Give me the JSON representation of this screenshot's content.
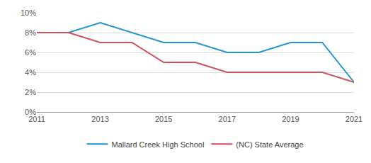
{
  "chart_data": {
    "type": "line",
    "x": [
      2011,
      2012,
      2013,
      2014,
      2015,
      2016,
      2017,
      2018,
      2019,
      2020,
      2021
    ],
    "series": [
      {
        "name": "Mallard Creek High School",
        "color": "#2196d3",
        "values": [
          8,
          8,
          9,
          8,
          7,
          7,
          6,
          6,
          7,
          7,
          3
        ]
      },
      {
        "name": "(NC) State Average",
        "color": "#d1505c",
        "values": [
          8,
          8,
          7,
          7,
          5,
          5,
          4,
          4,
          4,
          4,
          3
        ]
      }
    ],
    "xlim": [
      2011,
      2021
    ],
    "xticks": [
      2011,
      2013,
      2015,
      2017,
      2019,
      2021
    ],
    "ylim": [
      0,
      10
    ],
    "yticks": [
      {
        "value": 0,
        "label": "0%"
      },
      {
        "value": 2,
        "label": "2%"
      },
      {
        "value": 4,
        "label": "4%"
      },
      {
        "value": 6,
        "label": "6%"
      },
      {
        "value": 8,
        "label": "8%"
      },
      {
        "value": 10,
        "label": "10%"
      }
    ],
    "grid": true,
    "legend": "bottom"
  }
}
